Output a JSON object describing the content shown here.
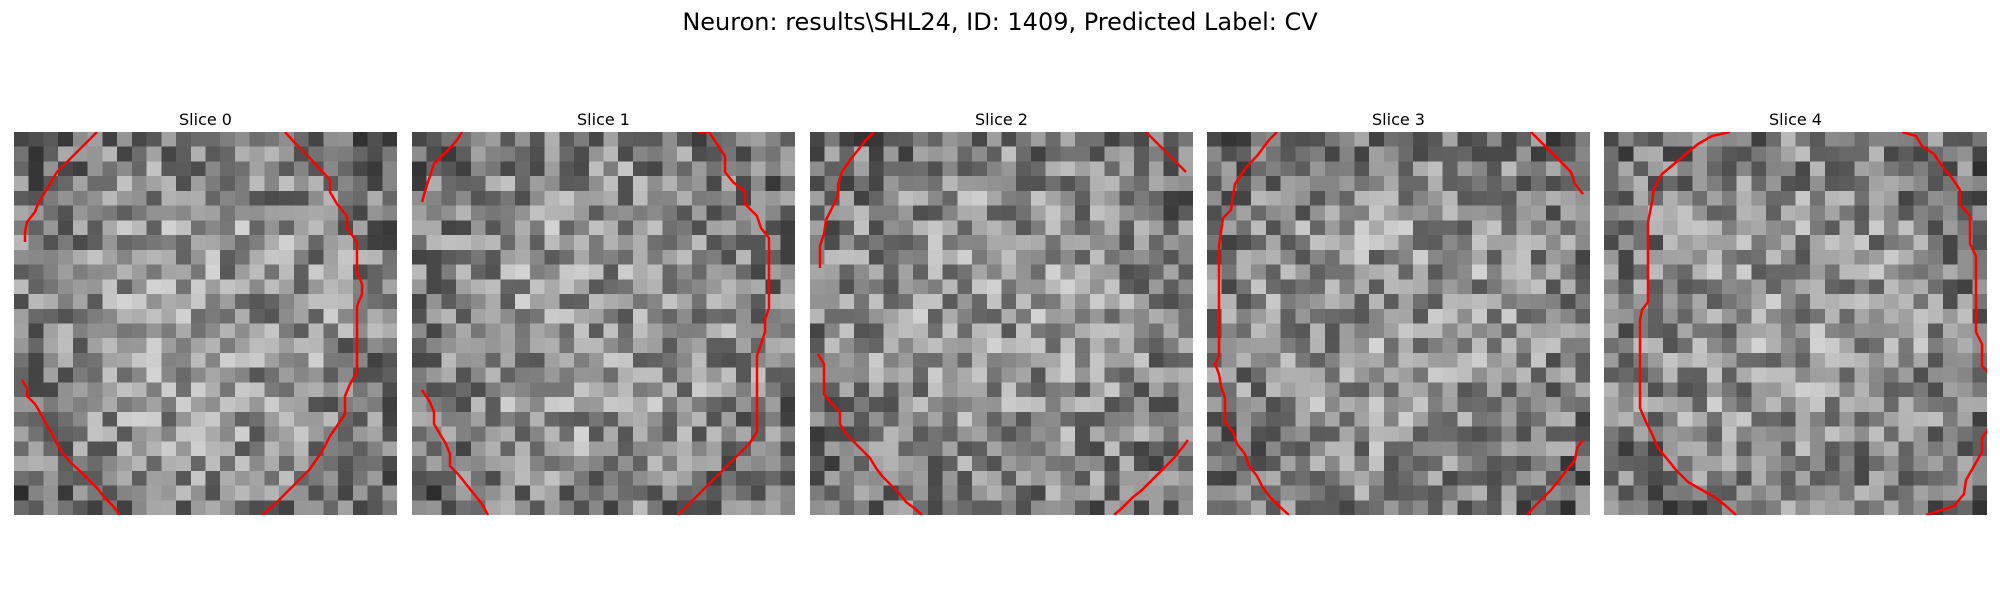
{
  "figure": {
    "title": "Neuron: results\\SHL24, ID: 1409, Predicted Label: CV"
  },
  "panels": [
    {
      "label": "Slice 0",
      "seed": 11,
      "roi": [
        [
          [
            83,
            0
          ],
          [
            75,
            8
          ],
          [
            67,
            16
          ],
          [
            59,
            24
          ],
          [
            51,
            32
          ],
          [
            43,
            40
          ],
          [
            37,
            50
          ],
          [
            31,
            60
          ],
          [
            24,
            72
          ],
          [
            21,
            80
          ],
          [
            13,
            90
          ],
          [
            11,
            100
          ],
          [
            11,
            110
          ]
        ],
        [
          [
            271,
            0
          ],
          [
            282,
            12
          ],
          [
            294,
            24
          ],
          [
            305,
            36
          ],
          [
            316,
            48
          ],
          [
            316,
            60
          ],
          [
            323,
            72
          ],
          [
            333,
            84
          ],
          [
            333,
            96
          ],
          [
            343,
            110
          ],
          [
            343,
            140
          ],
          [
            348,
            152
          ],
          [
            348,
            162
          ],
          [
            343,
            174
          ],
          [
            343,
            240
          ],
          [
            336,
            252
          ],
          [
            331,
            264
          ],
          [
            331,
            282
          ],
          [
            323,
            294
          ],
          [
            316,
            304
          ],
          [
            311,
            314
          ],
          [
            305,
            324
          ],
          [
            295,
            338
          ],
          [
            283,
            350
          ],
          [
            271,
            362
          ],
          [
            259,
            374
          ],
          [
            248,
            383
          ]
        ],
        [
          [
            8,
            248
          ],
          [
            13,
            256
          ],
          [
            13,
            264
          ],
          [
            21,
            272
          ],
          [
            27,
            282
          ],
          [
            32,
            292
          ],
          [
            37,
            300
          ],
          [
            42,
            310
          ],
          [
            48,
            320
          ],
          [
            56,
            330
          ],
          [
            67,
            340
          ],
          [
            75,
            348
          ],
          [
            83,
            356
          ],
          [
            91,
            366
          ],
          [
            99,
            374
          ],
          [
            106,
            383
          ]
        ]
      ]
    },
    {
      "label": "Slice 1",
      "seed": 23,
      "roi": [
        [
          [
            50,
            0
          ],
          [
            45,
            8
          ],
          [
            38,
            16
          ],
          [
            30,
            24
          ],
          [
            22,
            32
          ],
          [
            18,
            44
          ],
          [
            14,
            56
          ],
          [
            10,
            70
          ]
        ],
        [
          [
            285,
            0
          ],
          [
            297,
            0
          ],
          [
            305,
            12
          ],
          [
            313,
            24
          ],
          [
            313,
            40
          ],
          [
            321,
            50
          ],
          [
            333,
            60
          ],
          [
            333,
            72
          ],
          [
            345,
            84
          ],
          [
            349,
            96
          ],
          [
            357,
            106
          ],
          [
            357,
            176
          ],
          [
            353,
            188
          ],
          [
            353,
            200
          ],
          [
            349,
            212
          ],
          [
            345,
            224
          ],
          [
            345,
            300
          ],
          [
            337,
            312
          ],
          [
            325,
            324
          ],
          [
            313,
            336
          ],
          [
            301,
            348
          ],
          [
            289,
            360
          ],
          [
            277,
            372
          ],
          [
            266,
            383
          ]
        ],
        [
          [
            10,
            258
          ],
          [
            18,
            270
          ],
          [
            22,
            280
          ],
          [
            22,
            292
          ],
          [
            28,
            302
          ],
          [
            34,
            312
          ],
          [
            38,
            322
          ],
          [
            38,
            334
          ],
          [
            46,
            342
          ],
          [
            54,
            352
          ],
          [
            62,
            362
          ],
          [
            70,
            372
          ],
          [
            76,
            383
          ]
        ]
      ]
    },
    {
      "label": "Slice 2",
      "seed": 37,
      "roi": [
        [
          [
            64,
            0
          ],
          [
            56,
            8
          ],
          [
            48,
            18
          ],
          [
            40,
            28
          ],
          [
            32,
            40
          ],
          [
            28,
            52
          ],
          [
            28,
            64
          ],
          [
            22,
            76
          ],
          [
            16,
            88
          ],
          [
            14,
            102
          ],
          [
            10,
            114
          ],
          [
            10,
            136
          ]
        ],
        [
          [
            336,
            0
          ],
          [
            344,
            8
          ],
          [
            352,
            16
          ],
          [
            360,
            24
          ],
          [
            368,
            32
          ],
          [
            376,
            40
          ]
        ],
        [
          [
            8,
            222
          ],
          [
            14,
            232
          ],
          [
            14,
            262
          ],
          [
            22,
            272
          ],
          [
            30,
            280
          ],
          [
            30,
            292
          ],
          [
            36,
            302
          ],
          [
            44,
            310
          ],
          [
            52,
            318
          ],
          [
            60,
            326
          ],
          [
            66,
            336
          ],
          [
            72,
            344
          ],
          [
            80,
            352
          ],
          [
            88,
            360
          ],
          [
            96,
            370
          ],
          [
            104,
            376
          ],
          [
            112,
            383
          ]
        ],
        [
          [
            378,
            308
          ],
          [
            372,
            316
          ],
          [
            364,
            326
          ],
          [
            356,
            334
          ],
          [
            348,
            342
          ],
          [
            340,
            350
          ],
          [
            332,
            358
          ],
          [
            322,
            366
          ],
          [
            312,
            376
          ],
          [
            304,
            383
          ]
        ]
      ]
    },
    {
      "label": "Slice 3",
      "seed": 53,
      "roi": [
        [
          [
            70,
            0
          ],
          [
            62,
            8
          ],
          [
            56,
            16
          ],
          [
            50,
            24
          ],
          [
            42,
            32
          ],
          [
            36,
            40
          ],
          [
            28,
            52
          ],
          [
            26,
            64
          ],
          [
            24,
            78
          ],
          [
            16,
            86
          ],
          [
            14,
            100
          ],
          [
            12,
            114
          ],
          [
            12,
            224
          ],
          [
            8,
            232
          ],
          [
            12,
            242
          ],
          [
            14,
            254
          ],
          [
            18,
            266
          ],
          [
            18,
            290
          ],
          [
            26,
            300
          ],
          [
            30,
            312
          ],
          [
            38,
            322
          ],
          [
            42,
            334
          ],
          [
            50,
            344
          ],
          [
            56,
            356
          ],
          [
            64,
            366
          ],
          [
            72,
            374
          ],
          [
            82,
            383
          ]
        ],
        [
          [
            324,
            0
          ],
          [
            332,
            8
          ],
          [
            340,
            16
          ],
          [
            348,
            24
          ],
          [
            356,
            32
          ],
          [
            364,
            40
          ],
          [
            368,
            52
          ],
          [
            376,
            62
          ]
        ],
        [
          [
            376,
            308
          ],
          [
            370,
            316
          ],
          [
            368,
            328
          ],
          [
            360,
            338
          ],
          [
            352,
            348
          ],
          [
            344,
            358
          ],
          [
            336,
            366
          ],
          [
            328,
            374
          ],
          [
            320,
            383
          ]
        ]
      ]
    },
    {
      "label": "Slice 4",
      "seed": 71,
      "roi": [
        [
          [
            126,
            0
          ],
          [
            108,
            4
          ],
          [
            94,
            12
          ],
          [
            82,
            22
          ],
          [
            70,
            32
          ],
          [
            58,
            42
          ],
          [
            50,
            56
          ],
          [
            48,
            70
          ],
          [
            44,
            90
          ],
          [
            44,
            170
          ],
          [
            38,
            178
          ],
          [
            36,
            188
          ],
          [
            36,
            276
          ],
          [
            42,
            290
          ],
          [
            48,
            302
          ],
          [
            54,
            316
          ],
          [
            64,
            328
          ],
          [
            72,
            338
          ],
          [
            84,
            350
          ],
          [
            98,
            358
          ],
          [
            112,
            366
          ],
          [
            122,
            374
          ],
          [
            132,
            383
          ]
        ],
        [
          [
            298,
            0
          ],
          [
            312,
            4
          ],
          [
            318,
            14
          ],
          [
            330,
            22
          ],
          [
            338,
            34
          ],
          [
            348,
            46
          ],
          [
            356,
            58
          ],
          [
            356,
            72
          ],
          [
            366,
            84
          ],
          [
            366,
            112
          ],
          [
            372,
            124
          ],
          [
            372,
            200
          ],
          [
            378,
            212
          ],
          [
            378,
            234
          ],
          [
            386,
            242
          ],
          [
            386,
            294
          ],
          [
            378,
            306
          ],
          [
            378,
            320
          ],
          [
            370,
            334
          ],
          [
            362,
            348
          ],
          [
            360,
            362
          ],
          [
            350,
            374
          ],
          [
            338,
            378
          ],
          [
            322,
            383
          ]
        ]
      ]
    }
  ]
}
